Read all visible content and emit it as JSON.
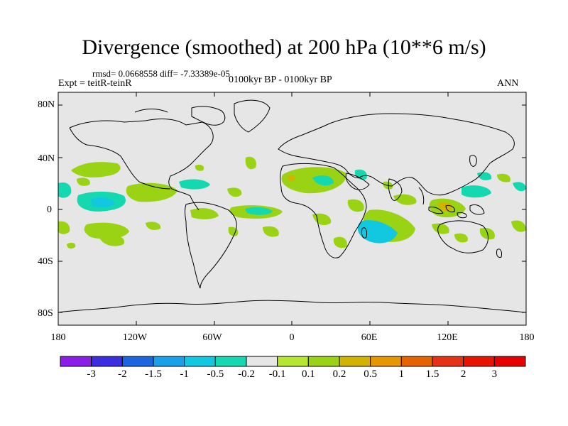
{
  "figure": {
    "title": "Divergence (smoothed) at 200 hPa (10**6 m/s)",
    "stats": "rmsd= 0.0668558 diff= -7.33389e-05",
    "experiment": "Expt = teitR-teinR",
    "period": "0100kyr BP - 0100kyr BP",
    "season": "ANN"
  },
  "axes": {
    "lat_labels": [
      "80N",
      "40N",
      "0",
      "40S",
      "80S"
    ],
    "lon_labels": [
      "180",
      "120W",
      "60W",
      "0",
      "60E",
      "120E",
      "180"
    ]
  },
  "colorbar": {
    "labels": [
      "-3",
      "-2",
      "-1.5",
      "-1",
      "-0.5",
      "-0.2",
      "-0.1",
      "0.1",
      "0.2",
      "0.5",
      "1",
      "1.5",
      "2",
      "3"
    ],
    "colors": [
      "#8a1ee8",
      "#3a2ee0",
      "#1c64e0",
      "#18a0e8",
      "#12c8e0",
      "#14d8b0",
      "#e6e6e6",
      "#b4e632",
      "#9ad214",
      "#d2b400",
      "#e69600",
      "#e66400",
      "#e63214",
      "#e61400",
      "#e60000"
    ]
  },
  "map": {
    "background_color": "#e6e6e6",
    "coast_color": "#000000"
  }
}
